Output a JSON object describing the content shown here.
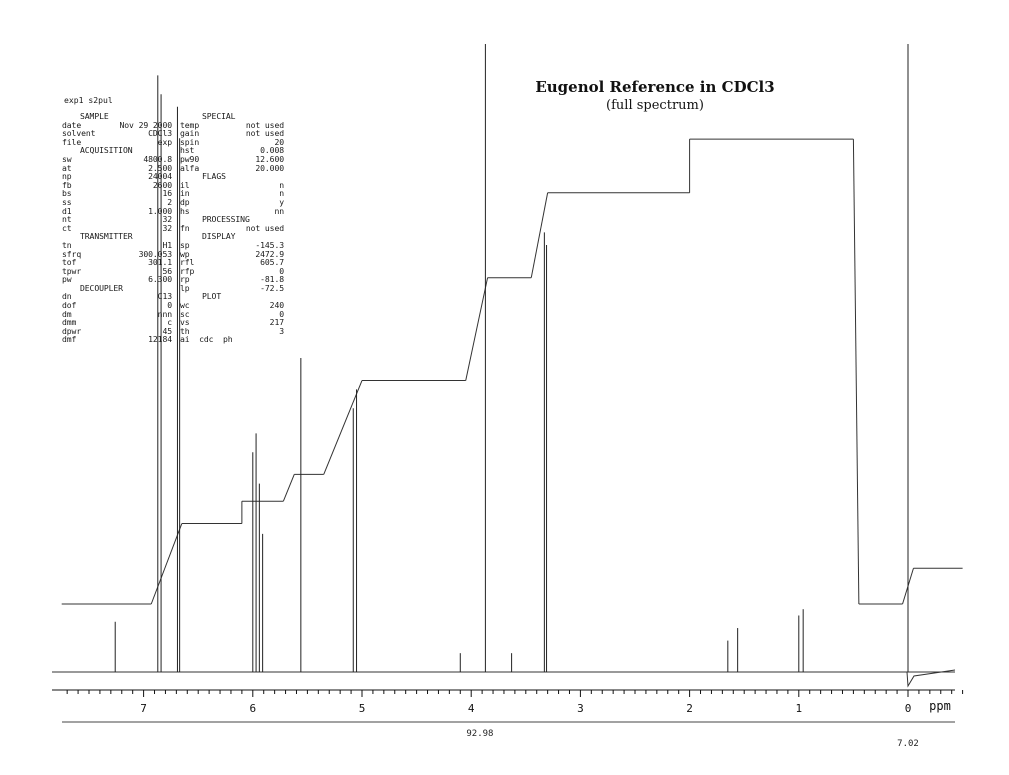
{
  "header": {
    "experiment": "exp1  s2pul"
  },
  "params": {
    "left_sections": [
      "SAMPLE",
      "ACQUISITION",
      "TRANSMITTER",
      "DECOUPLER"
    ],
    "right_sections": [
      "SPECIAL",
      "FLAGS",
      "PROCESSING",
      "DISPLAY",
      "PLOT"
    ],
    "rows": [
      {
        "sec1": "SAMPLE",
        "sec2": "SPECIAL"
      },
      {
        "k1": "date",
        "v1": "Nov 29 2000",
        "k2": "temp",
        "v2": "not used"
      },
      {
        "k1": "solvent",
        "v1": "CDCl3",
        "k2": "gain",
        "v2": "not used"
      },
      {
        "k1": "file",
        "v1": "exp",
        "k2": "spin",
        "v2": "20"
      },
      {
        "sec1": "ACQUISITION",
        "k2": "hst",
        "v2": "0.008"
      },
      {
        "k1": "sw",
        "v1": "4800.8",
        "k2": "pw90",
        "v2": "12.600"
      },
      {
        "k1": "at",
        "v1": "2.500",
        "k2": "alfa",
        "v2": "20.000"
      },
      {
        "k1": "np",
        "v1": "24004",
        "sec2": "FLAGS"
      },
      {
        "k1": "fb",
        "v1": "2600",
        "k2": "il",
        "v2": "n"
      },
      {
        "k1": "bs",
        "v1": "16",
        "k2": "in",
        "v2": "n"
      },
      {
        "k1": "ss",
        "v1": "2",
        "k2": "dp",
        "v2": "y"
      },
      {
        "k1": "d1",
        "v1": "1.000",
        "k2": "hs",
        "v2": "nn"
      },
      {
        "k1": "nt",
        "v1": "32",
        "sec2": "PROCESSING"
      },
      {
        "k1": "ct",
        "v1": "32",
        "k2": "fn",
        "v2": "not used"
      },
      {
        "sec1": "TRANSMITTER",
        "sec2": "DISPLAY"
      },
      {
        "k1": "tn",
        "v1": "H1",
        "k2": "sp",
        "v2": "-145.3"
      },
      {
        "k1": "sfrq",
        "v1": "300.053",
        "k2": "wp",
        "v2": "2472.9"
      },
      {
        "k1": "tof",
        "v1": "301.1",
        "k2": "rfl",
        "v2": "605.7"
      },
      {
        "k1": "tpwr",
        "v1": "56",
        "k2": "rfp",
        "v2": "0"
      },
      {
        "k1": "pw",
        "v1": "6.300",
        "k2": "rp",
        "v2": "-81.8"
      },
      {
        "sec1": "DECOUPLER",
        "k2": "lp",
        "v2": "-72.5"
      },
      {
        "k1": "dn",
        "v1": "C13",
        "sec2": "PLOT"
      },
      {
        "k1": "dof",
        "v1": "0",
        "k2": "wc",
        "v2": "240"
      },
      {
        "k1": "dm",
        "v1": "nnn",
        "k2": "sc",
        "v2": "0"
      },
      {
        "k1": "dmm",
        "v1": "c",
        "k2": "vs",
        "v2": "217"
      },
      {
        "k1": "dpwr",
        "v1": "45",
        "k2": "th",
        "v2": "3"
      },
      {
        "k1": "dmf",
        "v1": "12184",
        "k2": "ai  cdc  ph",
        "v2": ""
      }
    ]
  },
  "chart_data": {
    "type": "line",
    "title": "Eugenol Reference in CDCl3",
    "subtitle": "(full spectrum)",
    "xlabel": "ppm",
    "x_reversed": true,
    "xlim": [
      7.7,
      -0.5
    ],
    "x_ticks": [
      "7",
      "6",
      "5",
      "4",
      "3",
      "2",
      "1",
      "0"
    ],
    "x_tick_values": [
      7,
      6,
      5,
      4,
      3,
      2,
      1,
      0
    ],
    "grid": false,
    "peaks": [
      {
        "ppm": 7.26,
        "height": 0.08
      },
      {
        "ppm": 6.87,
        "height": 0.95
      },
      {
        "ppm": 6.84,
        "height": 0.92
      },
      {
        "ppm": 6.69,
        "height": 0.9
      },
      {
        "ppm": 6.67,
        "height": 0.85
      },
      {
        "ppm": 6.0,
        "height": 0.35
      },
      {
        "ppm": 5.97,
        "height": 0.38
      },
      {
        "ppm": 5.94,
        "height": 0.3
      },
      {
        "ppm": 5.91,
        "height": 0.22
      },
      {
        "ppm": 5.56,
        "height": 0.5
      },
      {
        "ppm": 5.08,
        "height": 0.42
      },
      {
        "ppm": 5.05,
        "height": 0.45
      },
      {
        "ppm": 4.1,
        "height": 0.03
      },
      {
        "ppm": 3.87,
        "height": 1.0
      },
      {
        "ppm": 3.63,
        "height": 0.03
      },
      {
        "ppm": 3.33,
        "height": 0.7
      },
      {
        "ppm": 3.31,
        "height": 0.68
      },
      {
        "ppm": 1.65,
        "height": 0.05
      },
      {
        "ppm": 1.56,
        "height": 0.07
      },
      {
        "ppm": 1.0,
        "height": 0.09
      },
      {
        "ppm": 0.96,
        "height": 0.1
      },
      {
        "ppm": 0.0,
        "height": 1.0
      }
    ],
    "integral_segments": [
      {
        "from": 7.75,
        "to": 6.93,
        "level": 0.0
      },
      {
        "from": 6.65,
        "to": 6.1,
        "level": 0.18
      },
      {
        "from": 6.1,
        "to": 5.72,
        "level": 0.23
      },
      {
        "from": 5.62,
        "to": 5.35,
        "level": 0.29
      },
      {
        "from": 5.0,
        "to": 4.05,
        "level": 0.5
      },
      {
        "from": 3.85,
        "to": 3.45,
        "level": 0.73
      },
      {
        "from": 3.3,
        "to": 2.0,
        "level": 0.92
      },
      {
        "from": 2.0,
        "to": 0.5,
        "level": 1.04
      },
      {
        "from": 0.45,
        "to": 0.05,
        "level": 0.0
      },
      {
        "from": -0.05,
        "to": -0.5,
        "level": 0.08
      }
    ],
    "annotations": [
      {
        "text": "92.98",
        "ppm": 3.92,
        "where": "below-axis"
      },
      {
        "text": "7.02",
        "ppm": 0.0,
        "where": "below-axis"
      }
    ]
  }
}
